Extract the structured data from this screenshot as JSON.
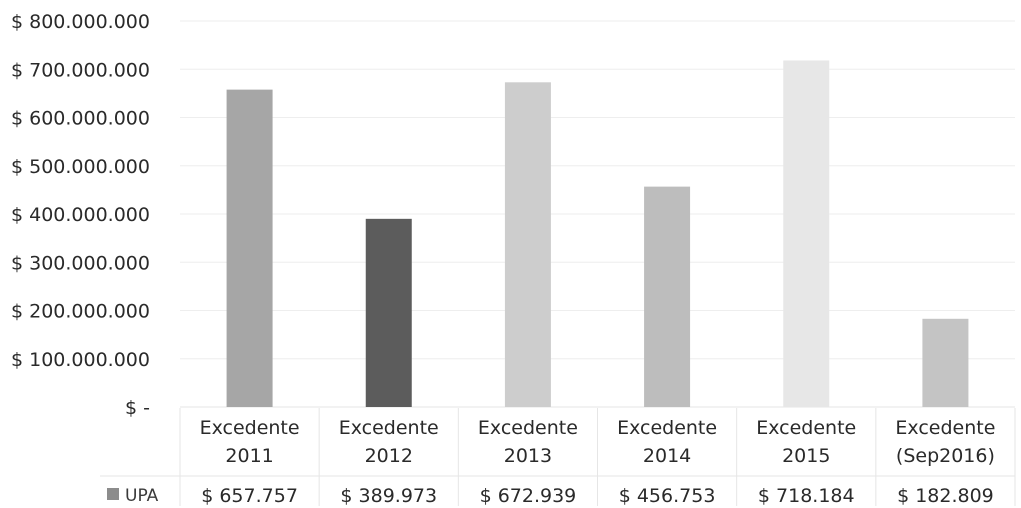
{
  "chart_data": {
    "type": "bar",
    "categories": [
      [
        "Excedente",
        "2011"
      ],
      [
        "Excedente",
        "2012"
      ],
      [
        "Excedente",
        "2013"
      ],
      [
        "Excedente",
        "2014"
      ],
      [
        "Excedente",
        "2015"
      ],
      [
        "Excedente",
        "(Sep2016)"
      ]
    ],
    "series": [
      {
        "name": "UPA",
        "values": [
          657757000,
          389973000,
          672939000,
          456753000,
          718184000,
          182809000
        ],
        "table_labels": [
          "$ 657.757",
          "$ 389.973",
          "$ 672.939",
          "$ 456.753",
          "$ 718.184",
          "$ 182.809"
        ]
      }
    ],
    "bar_colors": [
      "#a6a6a6",
      "#5c5c5c",
      "#cdcdcd",
      "#bdbdbd",
      "#e7e7e7",
      "#c4c4c4"
    ],
    "legend_color": "#8c8c8c",
    "ylim": [
      0,
      800000000
    ],
    "yticks": [
      "$ -",
      "$ 100.000.000",
      "$ 200.000.000",
      "$ 300.000.000",
      "$ 400.000.000",
      "$ 500.000.000",
      "$ 600.000.000",
      "$ 700.000.000",
      "$ 800.000.000"
    ],
    "title": "",
    "xlabel": "",
    "ylabel": "",
    "grid": true,
    "data_table": true
  }
}
